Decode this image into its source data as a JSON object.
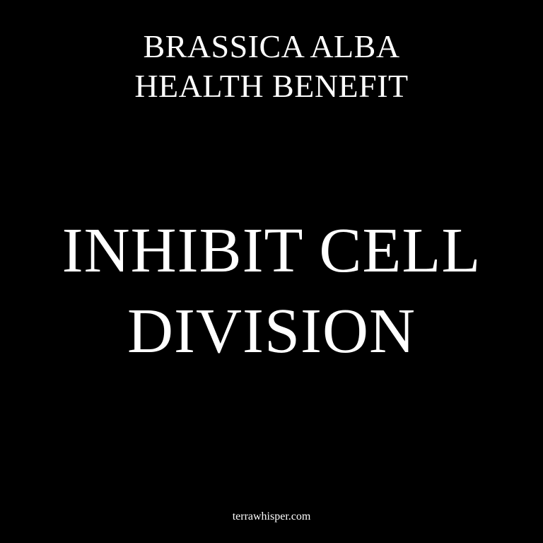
{
  "subtitle": {
    "line1": "BRASSICA ALBA",
    "line2": "HEALTH BENEFIT"
  },
  "headline": {
    "line1": "INHIBIT CELL",
    "line2": "DIVISION"
  },
  "footer": {
    "site": "terrawhisper.com"
  },
  "colors": {
    "background": "#000000",
    "text": "#ffffff"
  }
}
